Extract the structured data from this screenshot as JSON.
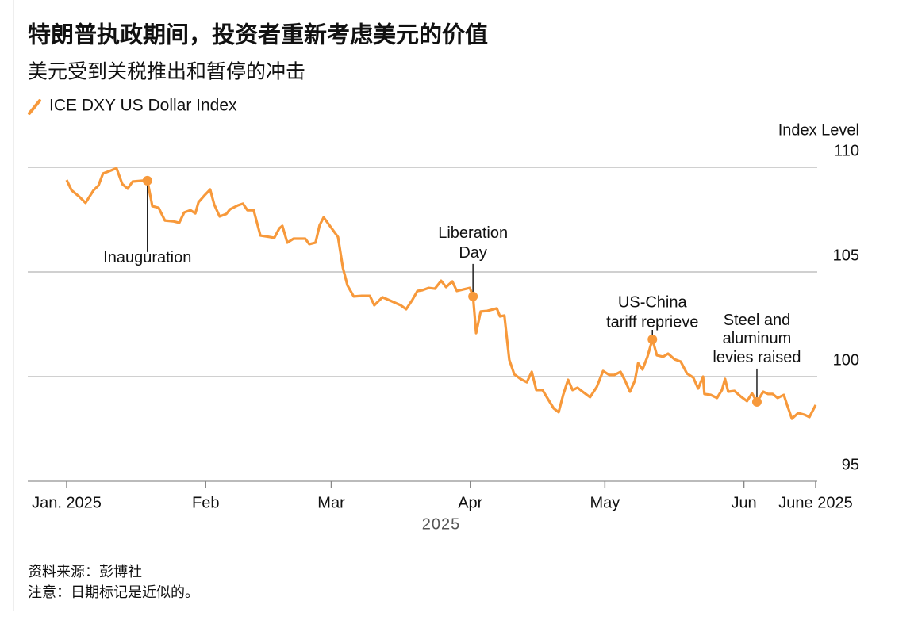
{
  "chart_data": {
    "type": "line",
    "title": "特朗普执政期间，投资者重新考虑美元的价值",
    "subtitle": "美元受到关税推出和暂停的冲击",
    "y_label": "Index Level",
    "x_label": "2025",
    "source": "资料来源：彭博社",
    "note": "注意：日期标记是近似的。",
    "x": [
      0,
      1.1,
      2.8,
      4.2,
      6.0,
      7.1,
      8.1,
      9.9,
      11.1,
      12.4,
      13.6,
      14.7,
      17.0,
      18.0,
      19.1,
      20.5,
      21.9,
      23.7,
      25.1,
      26.2,
      27.6,
      28.7,
      29.4,
      30.8,
      32.0,
      32.9,
      34.1,
      35.6,
      36.4,
      38.2,
      39.3,
      40.3,
      41.7,
      43.2,
      45.3,
      46.3,
      47.4,
      48.1,
      49.2,
      50.6,
      53.2,
      54.1,
      55.5,
      56.4,
      57.3,
      58.7,
      60.5,
      61.6,
      62.6,
      64.0,
      65.8,
      67.6,
      68.6,
      70.4,
      72.5,
      74.5,
      75.7,
      77.1,
      78.2,
      79.3,
      80.7,
      82.1,
      83.5,
      84.6,
      86.0,
      87.0,
      88.5,
      89.9,
      90.6,
      91.3,
      92.3,
      93.8,
      95.9,
      96.6,
      97.6,
      98.7,
      99.8,
      101.2,
      102.6,
      103.7,
      104.7,
      106.1,
      107.5,
      108.6,
      109.7,
      110.7,
      111.8,
      112.8,
      113.9,
      115.3,
      116.7,
      118.2,
      119.6,
      121.0,
      122.1,
      123.5,
      124.5,
      125.6,
      126.7,
      127.4,
      128.4,
      129.5,
      130.6,
      131.6,
      133.0,
      134.1,
      135.5,
      136.9,
      138.3,
      139.7,
      140.8,
      141.9,
      142.2,
      143.6,
      145.0,
      146.1,
      146.8,
      147.5,
      148.9,
      150.3,
      151.7,
      152.8,
      153.9,
      155.3,
      156.4,
      157.4,
      158.5,
      159.9,
      160.6,
      161.7,
      163.1,
      164.5,
      165.6,
      167.0
    ],
    "series": [
      {
        "name": "ICE DXY US Dollar Index",
        "color": "#f7993b",
        "values": [
          109.39,
          108.9,
          108.6,
          108.3,
          108.9,
          109.13,
          109.7,
          109.85,
          109.96,
          109.2,
          108.98,
          109.32,
          109.36,
          109.36,
          108.14,
          108.07,
          107.46,
          107.42,
          107.35,
          107.84,
          107.95,
          107.8,
          108.33,
          108.67,
          108.94,
          108.22,
          107.65,
          107.77,
          107.99,
          108.18,
          108.26,
          107.95,
          107.95,
          106.74,
          106.67,
          106.63,
          107.08,
          107.2,
          106.4,
          106.59,
          106.59,
          106.33,
          106.4,
          107.23,
          107.61,
          107.2,
          106.67,
          105.19,
          104.36,
          103.83,
          103.86,
          103.86,
          103.41,
          103.79,
          103.6,
          103.41,
          103.22,
          103.67,
          104.09,
          104.13,
          104.24,
          104.2,
          104.58,
          104.28,
          104.55,
          104.09,
          104.17,
          104.24,
          103.83,
          102.08,
          103.11,
          103.14,
          103.26,
          102.88,
          102.92,
          100.8,
          100.11,
          99.89,
          99.73,
          100.23,
          99.36,
          99.36,
          98.86,
          98.48,
          98.3,
          99.13,
          99.85,
          99.36,
          99.47,
          99.24,
          99.02,
          99.51,
          100.27,
          100.08,
          100.08,
          100.23,
          99.81,
          99.28,
          99.81,
          100.64,
          100.34,
          100.95,
          101.78,
          101.02,
          100.95,
          101.1,
          100.83,
          100.72,
          100.15,
          99.96,
          99.43,
          100.0,
          99.17,
          99.13,
          98.98,
          99.36,
          99.89,
          99.28,
          99.32,
          99.05,
          98.83,
          99.2,
          98.79,
          99.28,
          99.17,
          99.17,
          98.98,
          99.13,
          98.67,
          97.99,
          98.26,
          98.18,
          98.07,
          98.64
        ]
      }
    ],
    "xlim": [
      -8.67,
      167.35
    ],
    "xticks": [
      {
        "value": 0,
        "label": "Jan. 2025"
      },
      {
        "value": 31,
        "label": "Feb"
      },
      {
        "value": 59,
        "label": "Mar"
      },
      {
        "value": 90,
        "label": "Apr"
      },
      {
        "value": 120,
        "label": "May"
      },
      {
        "value": 151,
        "label": "Jun"
      },
      {
        "value": 167,
        "label": "June 2025"
      }
    ],
    "ylim": [
      95,
      110
    ],
    "yticks": [
      95,
      100,
      105,
      110
    ],
    "grid": true,
    "annotations": [
      {
        "label": [
          "Inauguration"
        ],
        "x": 18.0,
        "y": 109.36
      },
      {
        "label": [
          "Liberation",
          "Day"
        ],
        "x": 90.6,
        "y": 103.83
      },
      {
        "label": [
          "US-China",
          "tariff reprieve"
        ],
        "x": 130.6,
        "y": 101.78
      },
      {
        "label": [
          "Steel and",
          "aluminum",
          "levies raised"
        ],
        "x": 153.9,
        "y": 98.79
      }
    ]
  }
}
